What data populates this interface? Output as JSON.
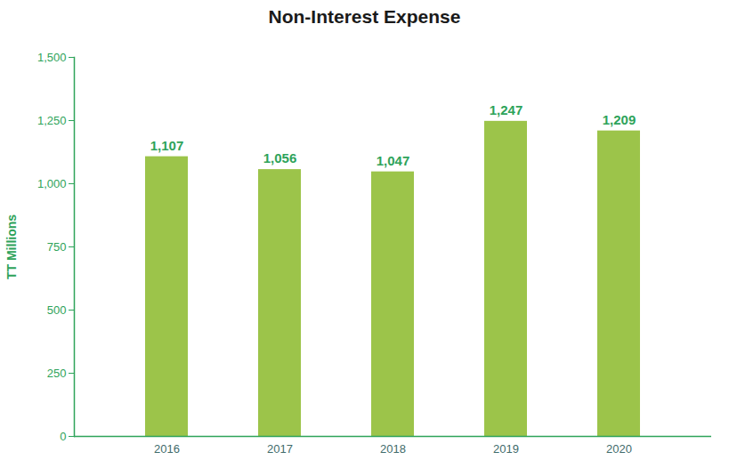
{
  "chart_data": {
    "type": "bar",
    "title": "Non-Interest Expense",
    "y_label": "TT Millions",
    "categories": [
      "2016",
      "2017",
      "2018",
      "2019",
      "2020"
    ],
    "values": [
      1107,
      1056,
      1047,
      1247,
      1209
    ],
    "value_labels": [
      "1,107",
      "1,056",
      "1,047",
      "1,247",
      "1,209"
    ],
    "color": "#9cc44a",
    "ylim": [
      0,
      1500
    ],
    "yticks": [
      0,
      250,
      500,
      750,
      {
        "value": 1000,
        "label": "1,000"
      },
      {
        "value": 1250,
        "label": "1,250"
      },
      {
        "value": 1500,
        "label": "1,500"
      }
    ],
    "grid": false,
    "data_labels": true
  }
}
